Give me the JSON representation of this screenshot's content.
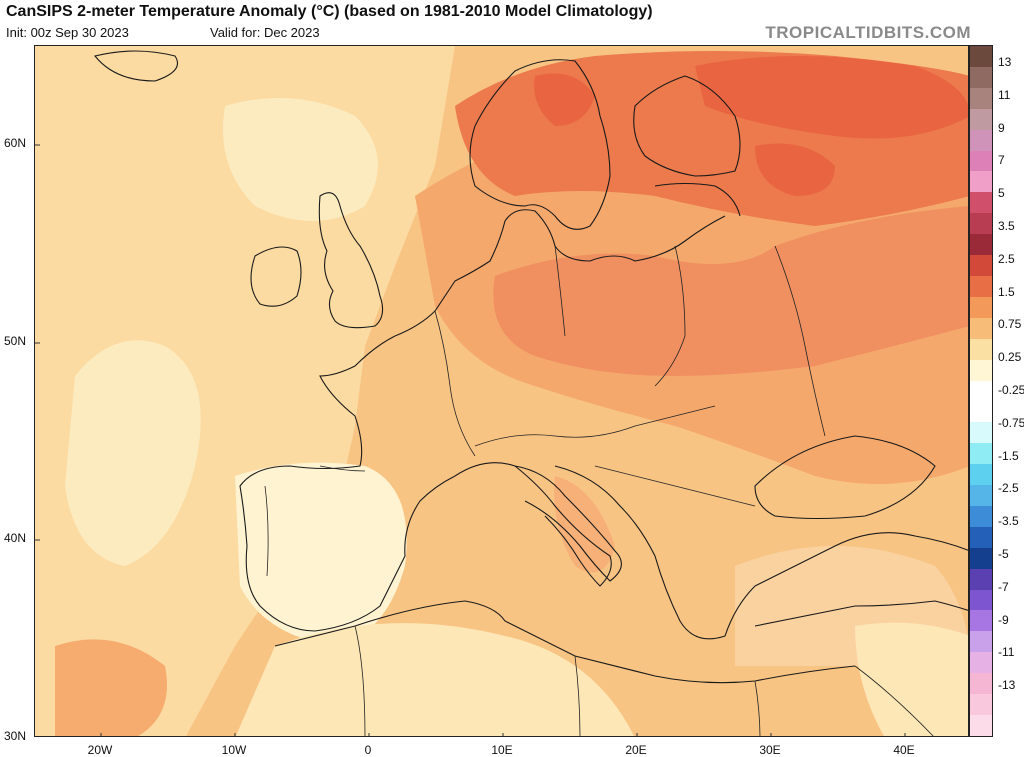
{
  "header": {
    "title": "CanSIPS 2-meter Temperature Anomaly (°C) (based on 1981-2010 Model Climatology)",
    "init": "Init: 00z Sep 30 2023",
    "valid": "Valid for: Dec 2023",
    "brand": "TROPICALTIDBITS.COM"
  },
  "axes": {
    "lat_labels": [
      "60N",
      "50N",
      "40N",
      "30N"
    ],
    "lon_labels": [
      "20W",
      "10W",
      "0",
      "10E",
      "20E",
      "30E",
      "40E"
    ]
  },
  "colorbar": {
    "labels": [
      "13",
      "11",
      "9",
      "7",
      "5",
      "3.5",
      "2.5",
      "1.5",
      "0.75",
      "0.25",
      "-0.25",
      "-0.75",
      "-1.5",
      "-2.5",
      "-3.5",
      "-5",
      "-7",
      "-9",
      "-11",
      "-13"
    ],
    "colors": [
      "#6b4a3d",
      "#8f6a62",
      "#a8837d",
      "#bf9aa0",
      "#cf92b8",
      "#de80b8",
      "#f0a0c8",
      "#d0506c",
      "#b83d52",
      "#9a2a38",
      "#d2493a",
      "#e86f45",
      "#f39a5a",
      "#f7bd78",
      "#fbe0a4",
      "#fff6d6",
      "#ffffff",
      "#ffffff",
      "#d8fafc",
      "#90ecf4",
      "#5cd0ee",
      "#55b4e8",
      "#3c8cd8",
      "#2560b8",
      "#133f8e",
      "#5a40b0",
      "#7d55d0",
      "#a876e2",
      "#c9a0ea",
      "#e6b2e6",
      "#f4b6d2",
      "#f9c8dc",
      "#fcdce8"
    ]
  }
}
